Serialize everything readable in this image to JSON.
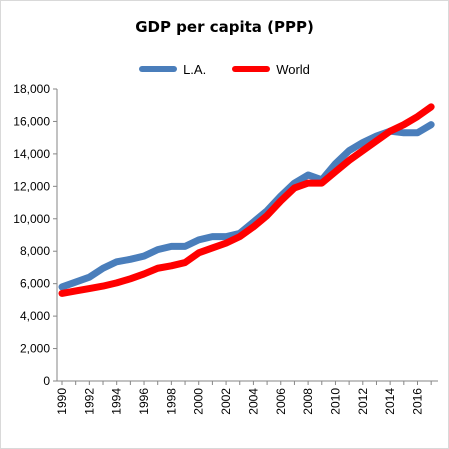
{
  "chart_data": {
    "type": "line",
    "title": "GDP per capita  (PPP)",
    "xlabel": "",
    "ylabel": "",
    "ylim": [
      0,
      18000
    ],
    "y_ticks": [
      "0",
      "2,000",
      "4,000",
      "6,000",
      "8,000",
      "10,000",
      "12,000",
      "14,000",
      "16,000",
      "18,000"
    ],
    "y_tick_values": [
      0,
      2000,
      4000,
      6000,
      8000,
      10000,
      12000,
      14000,
      16000,
      18000
    ],
    "x_ticks": [
      "1990",
      "1992",
      "1994",
      "1996",
      "1998",
      "2000",
      "2002",
      "2004",
      "2006",
      "2008",
      "2010",
      "2012",
      "2014",
      "2016"
    ],
    "x_tick_values": [
      1990,
      1992,
      1994,
      1996,
      1998,
      2000,
      2002,
      2004,
      2006,
      2008,
      2010,
      2012,
      2014,
      2016
    ],
    "x": [
      1990,
      1991,
      1992,
      1993,
      1994,
      1995,
      1996,
      1997,
      1998,
      1999,
      2000,
      2001,
      2002,
      2003,
      2004,
      2005,
      2006,
      2007,
      2008,
      2009,
      2010,
      2011,
      2012,
      2013,
      2014,
      2015,
      2016,
      2017
    ],
    "series": [
      {
        "name": "L.A.",
        "color": "#4a7ebb",
        "values": [
          5800,
          6100,
          6400,
          6950,
          7350,
          7500,
          7700,
          8100,
          8300,
          8300,
          8700,
          8900,
          8900,
          9100,
          9800,
          10500,
          11400,
          12200,
          12700,
          12400,
          13400,
          14200,
          14700,
          15100,
          15400,
          15300,
          15300,
          15800
        ]
      },
      {
        "name": "World",
        "color": "#ff0000",
        "values": [
          5400,
          5550,
          5700,
          5850,
          6050,
          6300,
          6600,
          6950,
          7100,
          7300,
          7900,
          8200,
          8500,
          8900,
          9500,
          10200,
          11100,
          11900,
          12200,
          12200,
          12900,
          13600,
          14200,
          14800,
          15400,
          15800,
          16300,
          16900
        ]
      }
    ],
    "grid": false,
    "legend_position": "top"
  }
}
